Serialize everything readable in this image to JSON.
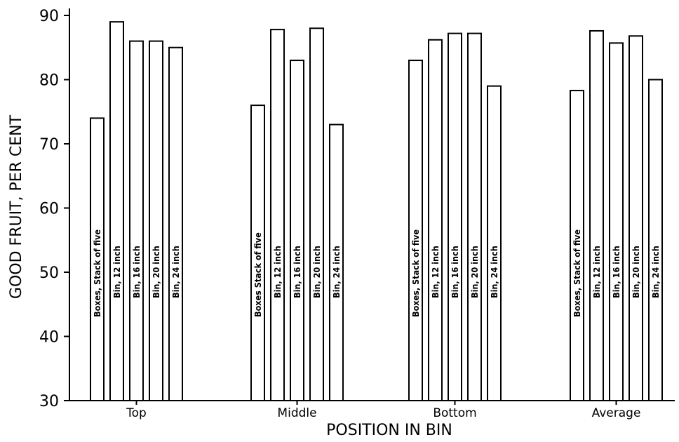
{
  "chart_data": {
    "type": "bar",
    "title": "",
    "xlabel": "POSITION IN BIN",
    "ylabel": "GOOD FRUIT, PER CENT",
    "ylim": [
      30,
      90
    ],
    "yticks": [
      30,
      40,
      50,
      60,
      70,
      80,
      90
    ],
    "grid": false,
    "categories": [
      "Top",
      "Middle",
      "Bottom",
      "Average"
    ],
    "series": [
      {
        "name": "Boxes, Stack of five",
        "values": [
          74,
          76,
          83,
          78.3
        ]
      },
      {
        "name": "Bin, 12 inch",
        "values": [
          89,
          87.8,
          86.2,
          87.6
        ]
      },
      {
        "name": "Bin, 16 inch",
        "values": [
          86,
          83,
          87.2,
          85.7
        ]
      },
      {
        "name": "Bin, 20 inch",
        "values": [
          86,
          88,
          87.2,
          86.8
        ]
      },
      {
        "name": "Bin, 24 inch",
        "values": [
          85,
          73,
          79,
          80
        ]
      }
    ],
    "bar_labels": {
      "Middle": [
        "Boxes  Stack of five",
        "Bin, 12 inch",
        "Bin, 16 inch",
        "Bin, 20 inch",
        "Bin, 24 inch"
      ]
    }
  }
}
